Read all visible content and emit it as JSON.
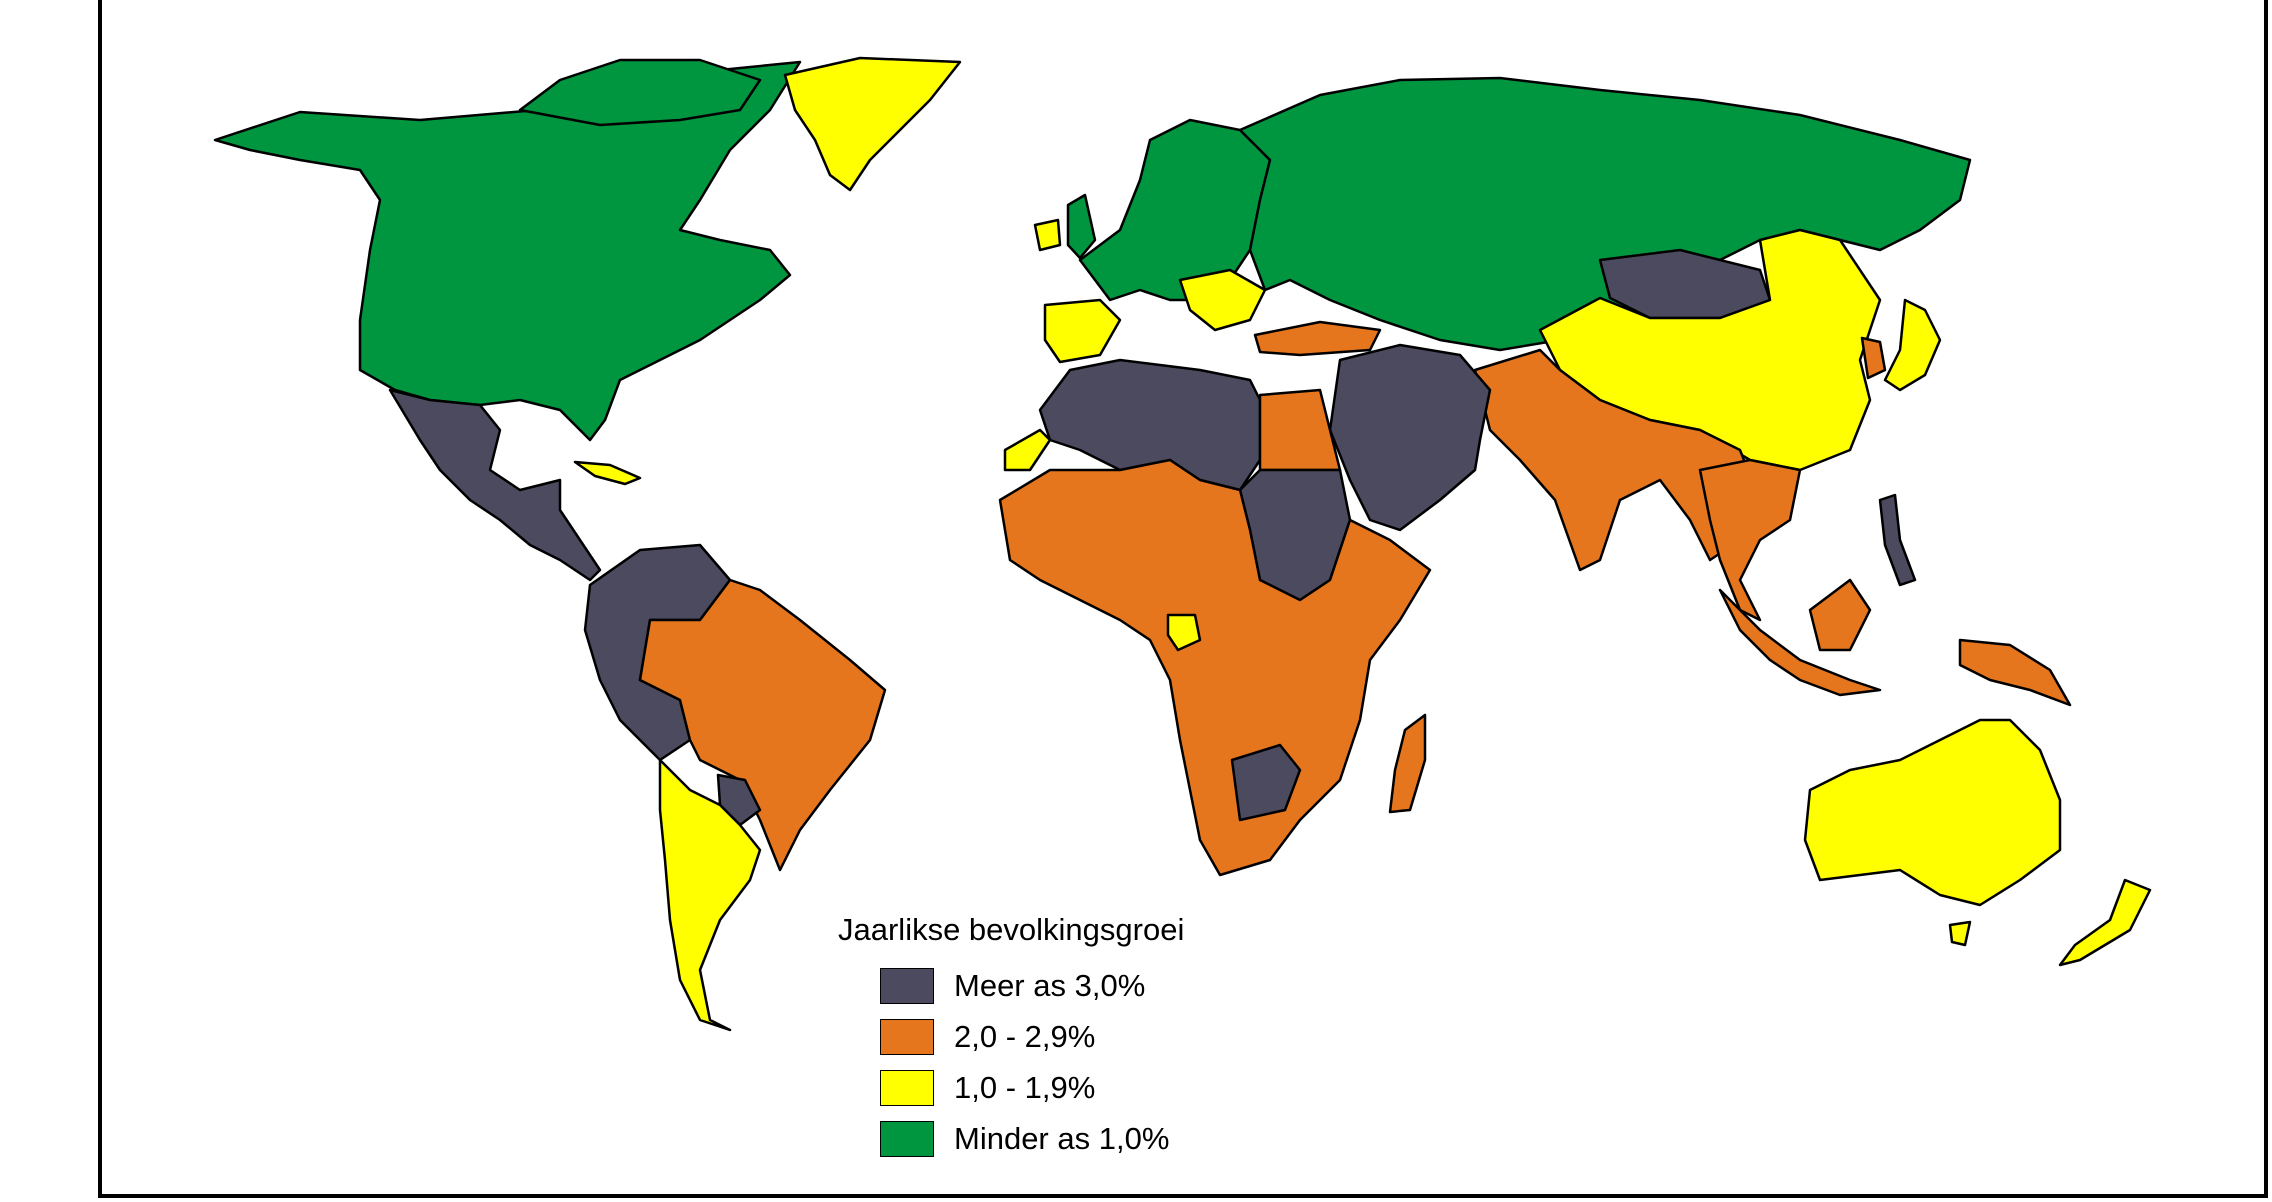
{
  "legend": {
    "title": "Jaarlikse bevolkingsgroei",
    "items": [
      {
        "label": "Meer as 3,0%",
        "color": "#4b4a5e"
      },
      {
        "label": "2,0 - 2,9%",
        "color": "#e5761d"
      },
      {
        "label": "1,0 - 1,9%",
        "color": "#ffff00"
      },
      {
        "label": "Minder as 1,0%",
        "color": "#00953f"
      }
    ]
  },
  "colors": {
    "over3": "#4b4a5e",
    "r2to29": "#e5761d",
    "r1to19": "#ffff00",
    "under1": "#00953f",
    "background": "#ffffff",
    "border": "#000000"
  }
}
